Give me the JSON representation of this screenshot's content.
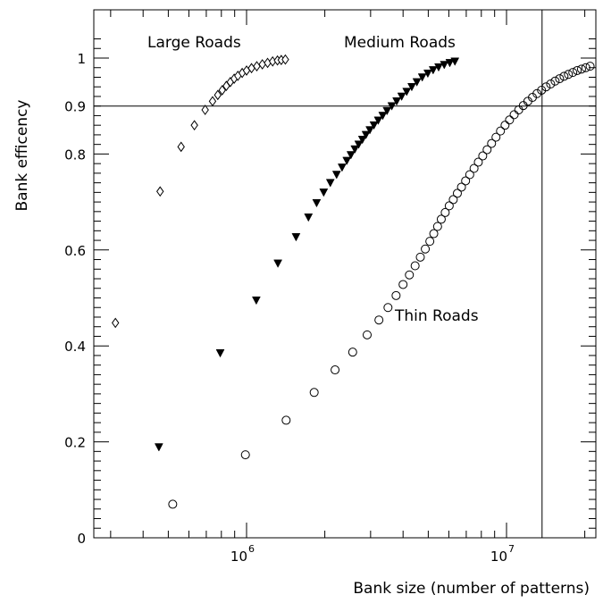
{
  "chart_data": {
    "type": "scatter",
    "title": "",
    "xlabel": "Bank size (number of patterns)",
    "ylabel": "Bank efficency",
    "x_scale": "log",
    "xlim": [
      250000,
      23000000
    ],
    "ylim": [
      0,
      1.06
    ],
    "x_ticks": [
      {
        "value": 1000000,
        "base": "10",
        "exponent": "6"
      },
      {
        "value": 10000000,
        "base": "10",
        "exponent": "7"
      }
    ],
    "y_ticks": [
      {
        "value": 0,
        "label": "0"
      },
      {
        "value": 0.2,
        "label": "0.2"
      },
      {
        "value": 0.4,
        "label": "0.4"
      },
      {
        "value": 0.6,
        "label": "0.6"
      },
      {
        "value": 0.8,
        "label": "0.8"
      },
      {
        "value": 0.9,
        "label": "0.9"
      },
      {
        "value": 1,
        "label": "1"
      }
    ],
    "grid": false,
    "reference_lines": {
      "horizontal_y": 0.9,
      "vertical_x": 13700000
    },
    "series_labels": [
      {
        "text": "Large Roads"
      },
      {
        "text": "Medium Roads"
      },
      {
        "text": "Thin Roads"
      }
    ],
    "series": [
      {
        "marker": "diamond-open",
        "color": "#000000",
        "points": [
          [
            313000,
            0.448
          ],
          [
            465000,
            0.722
          ],
          [
            560000,
            0.815
          ],
          [
            630000,
            0.86
          ],
          [
            693000,
            0.892
          ],
          [
            740000,
            0.91
          ],
          [
            775000,
            0.923
          ],
          [
            806000,
            0.933
          ],
          [
            836000,
            0.942
          ],
          [
            866000,
            0.95
          ],
          [
            896000,
            0.957
          ],
          [
            926000,
            0.963
          ],
          [
            962000,
            0.969
          ],
          [
            1000000,
            0.974
          ],
          [
            1045000,
            0.979
          ],
          [
            1095000,
            0.983
          ],
          [
            1150000,
            0.987
          ],
          [
            1205000,
            0.99
          ],
          [
            1260000,
            0.993
          ],
          [
            1315000,
            0.995
          ],
          [
            1360000,
            0.996
          ],
          [
            1410000,
            0.997
          ]
        ]
      },
      {
        "marker": "triangle-down-filled",
        "color": "#000000",
        "points": [
          [
            460000,
            0.189
          ],
          [
            792000,
            0.385
          ],
          [
            1090000,
            0.495
          ],
          [
            1320000,
            0.572
          ],
          [
            1550000,
            0.627
          ],
          [
            1730000,
            0.668
          ],
          [
            1860000,
            0.698
          ],
          [
            1980000,
            0.72
          ],
          [
            2100000,
            0.74
          ],
          [
            2220000,
            0.757
          ],
          [
            2330000,
            0.772
          ],
          [
            2430000,
            0.786
          ],
          [
            2520000,
            0.798
          ],
          [
            2610000,
            0.81
          ],
          [
            2700000,
            0.82
          ],
          [
            2790000,
            0.83
          ],
          [
            2880000,
            0.84
          ],
          [
            2980000,
            0.85
          ],
          [
            3090000,
            0.86
          ],
          [
            3210000,
            0.87
          ],
          [
            3340000,
            0.88
          ],
          [
            3470000,
            0.89
          ],
          [
            3620000,
            0.9
          ],
          [
            3780000,
            0.91
          ],
          [
            3950000,
            0.92
          ],
          [
            4130000,
            0.93
          ],
          [
            4320000,
            0.94
          ],
          [
            4520000,
            0.95
          ],
          [
            4740000,
            0.96
          ],
          [
            4980000,
            0.968
          ],
          [
            5220000,
            0.975
          ],
          [
            5480000,
            0.981
          ],
          [
            5760000,
            0.986
          ],
          [
            6050000,
            0.99
          ],
          [
            6330000,
            0.993
          ]
        ]
      },
      {
        "marker": "circle-open",
        "color": "#000000",
        "points": [
          [
            520000,
            0.07
          ],
          [
            990000,
            0.173
          ],
          [
            1420000,
            0.245
          ],
          [
            1820000,
            0.303
          ],
          [
            2190000,
            0.35
          ],
          [
            2560000,
            0.387
          ],
          [
            2910000,
            0.423
          ],
          [
            3230000,
            0.454
          ],
          [
            3500000,
            0.48
          ],
          [
            3760000,
            0.505
          ],
          [
            4000000,
            0.528
          ],
          [
            4230000,
            0.548
          ],
          [
            4450000,
            0.567
          ],
          [
            4660000,
            0.585
          ],
          [
            4870000,
            0.602
          ],
          [
            5070000,
            0.618
          ],
          [
            5250000,
            0.634
          ],
          [
            5430000,
            0.649
          ],
          [
            5610000,
            0.664
          ],
          [
            5810000,
            0.678
          ],
          [
            6020000,
            0.692
          ],
          [
            6240000,
            0.705
          ],
          [
            6470000,
            0.718
          ],
          [
            6710000,
            0.731
          ],
          [
            6960000,
            0.744
          ],
          [
            7220000,
            0.757
          ],
          [
            7500000,
            0.77
          ],
          [
            7790000,
            0.783
          ],
          [
            8100000,
            0.796
          ],
          [
            8420000,
            0.809
          ],
          [
            8760000,
            0.822
          ],
          [
            9110000,
            0.835
          ],
          [
            9480000,
            0.848
          ],
          [
            9870000,
            0.86
          ],
          [
            10270000,
            0.871
          ],
          [
            10700000,
            0.882
          ],
          [
            11140000,
            0.892
          ],
          [
            11600000,
            0.901
          ],
          [
            12080000,
            0.91
          ],
          [
            12580000,
            0.918
          ],
          [
            13100000,
            0.926
          ],
          [
            13640000,
            0.933
          ],
          [
            14200000,
            0.94
          ],
          [
            14780000,
            0.946
          ],
          [
            15380000,
            0.952
          ],
          [
            16000000,
            0.957
          ],
          [
            16640000,
            0.962
          ],
          [
            17300000,
            0.966
          ],
          [
            17990000,
            0.97
          ],
          [
            18700000,
            0.974
          ],
          [
            19430000,
            0.977
          ],
          [
            20190000,
            0.98
          ],
          [
            20970000,
            0.983
          ]
        ]
      }
    ]
  }
}
